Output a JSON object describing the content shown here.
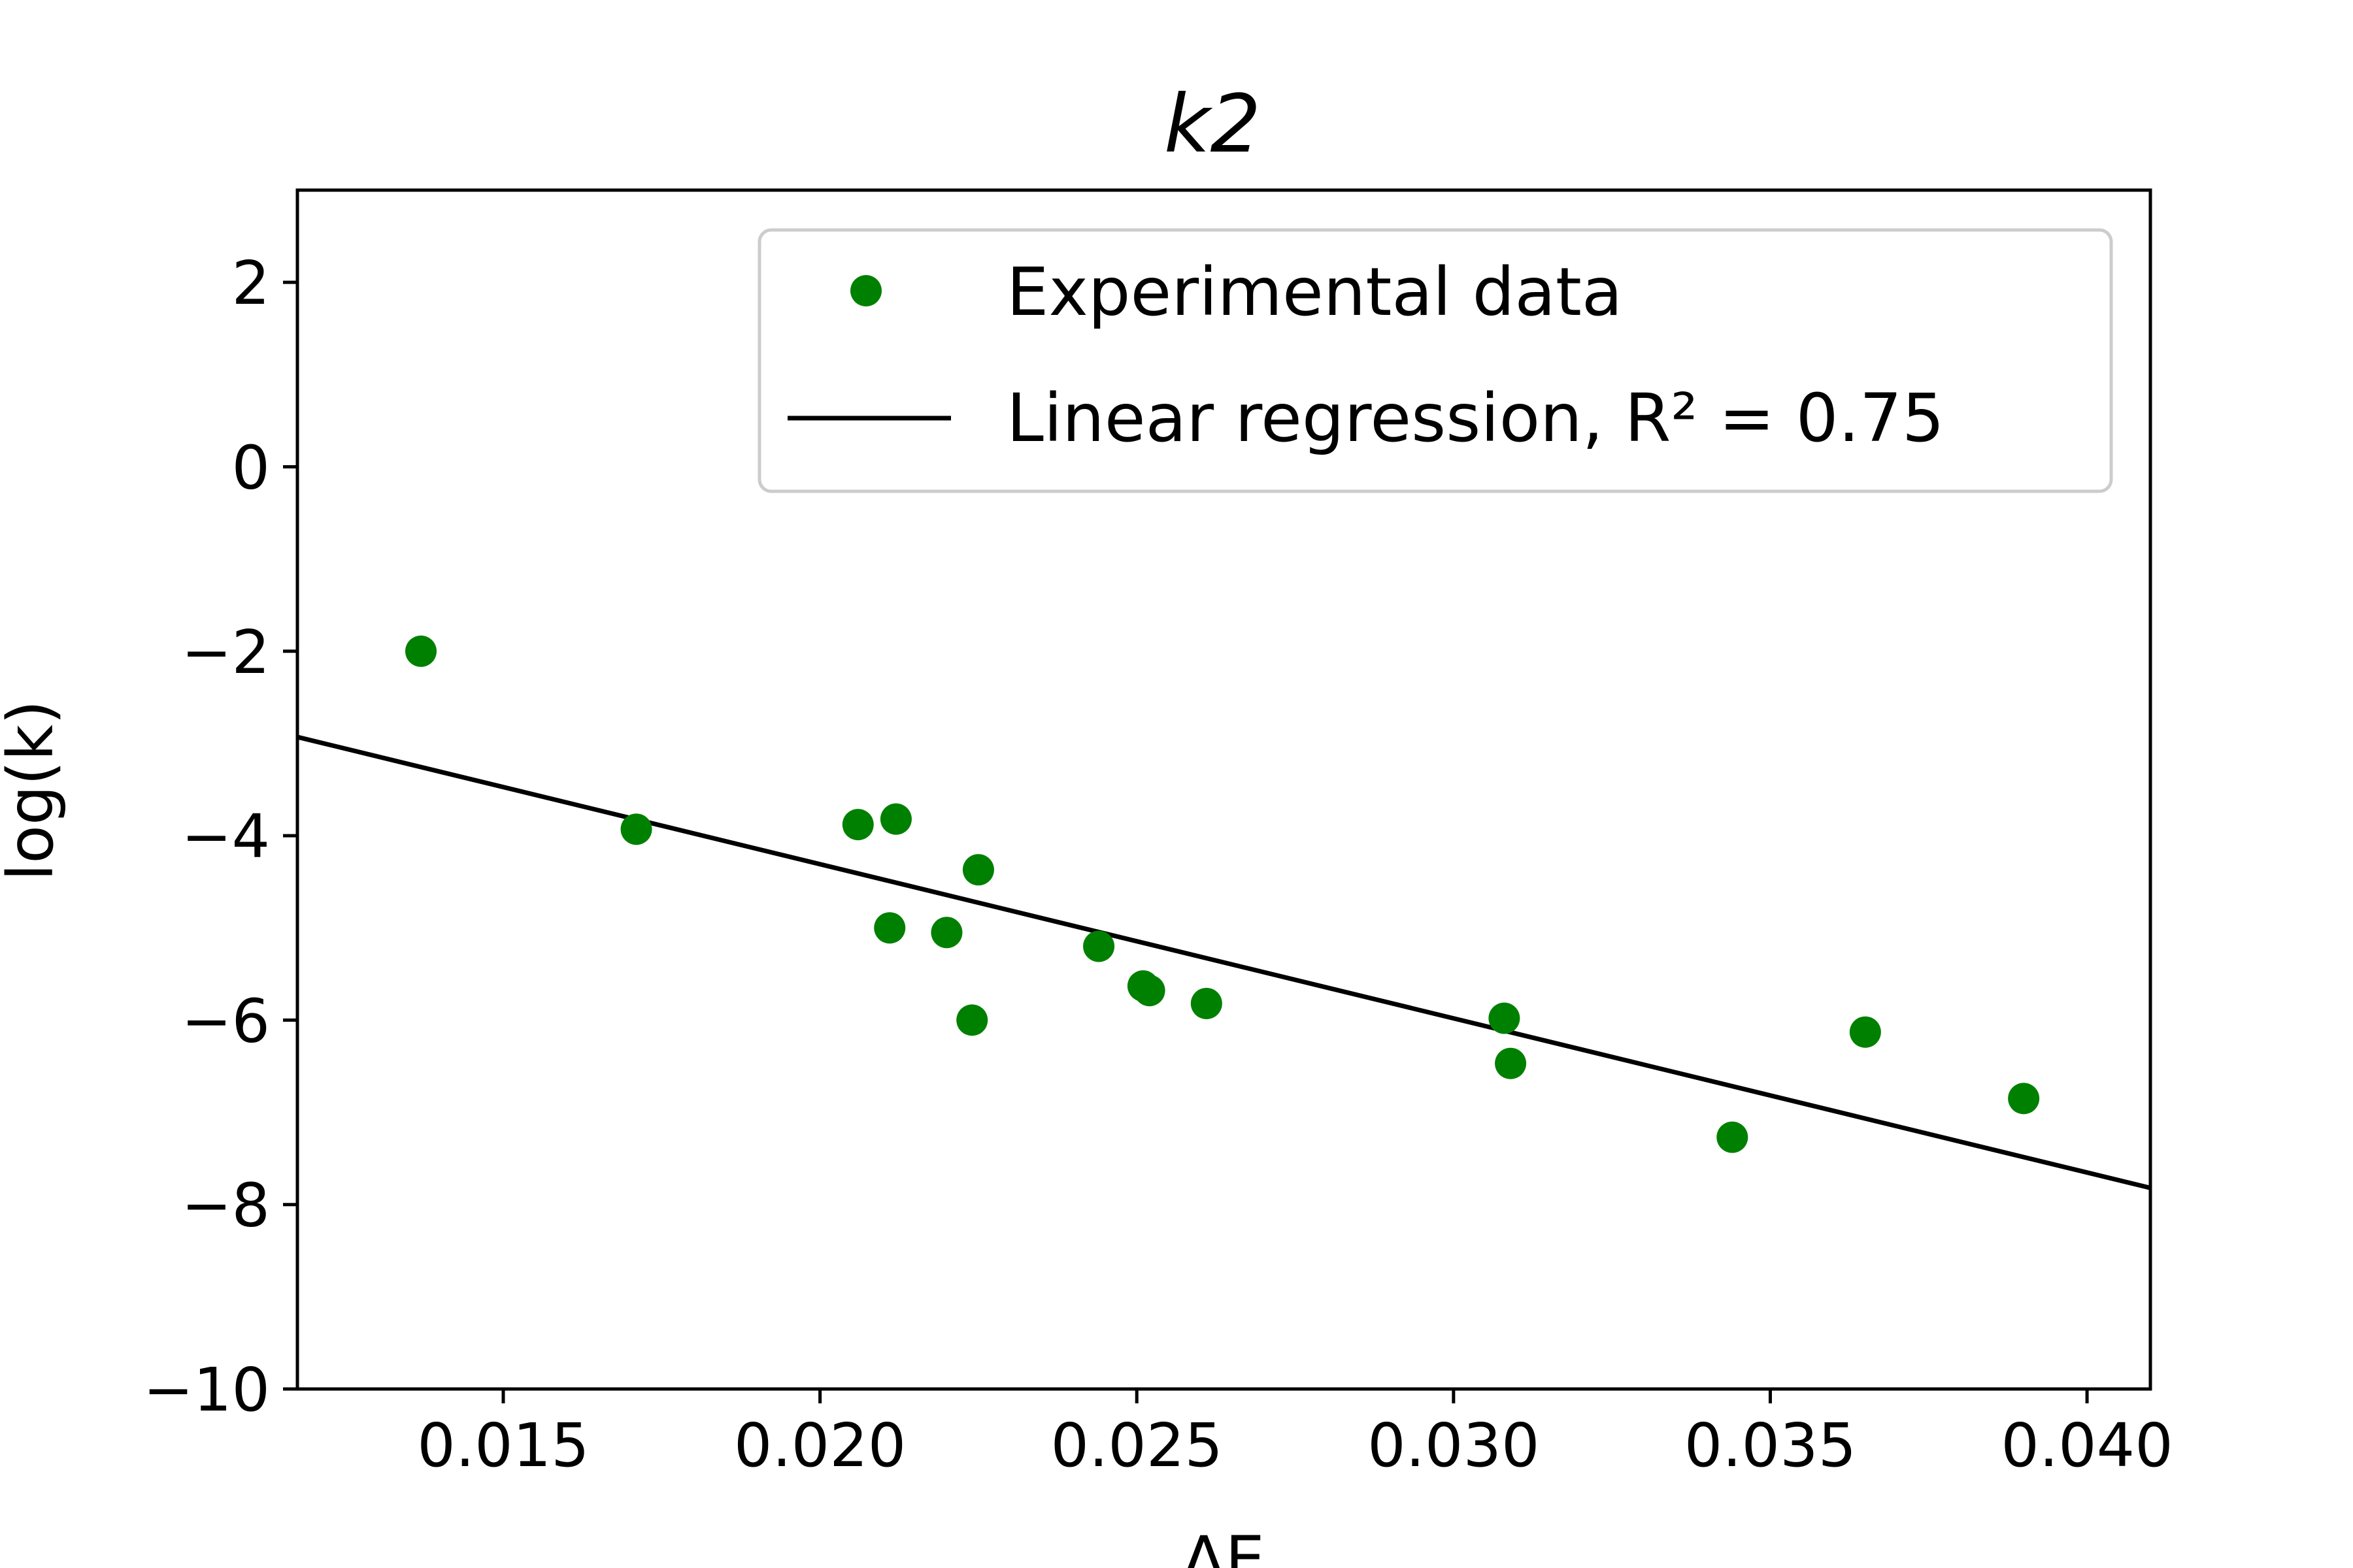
{
  "chart_data": {
    "type": "scatter",
    "title": "k2",
    "xlabel": "ΔE",
    "ylabel": "log(k)",
    "xlim": [
      0.01175,
      0.041
    ],
    "ylim": [
      -10,
      3
    ],
    "xticks": [
      {
        "value": 0.015,
        "label": "0.015"
      },
      {
        "value": 0.02,
        "label": "0.020"
      },
      {
        "value": 0.025,
        "label": "0.025"
      },
      {
        "value": 0.03,
        "label": "0.030"
      },
      {
        "value": 0.035,
        "label": "0.035"
      },
      {
        "value": 0.04,
        "label": "0.040"
      }
    ],
    "yticks": [
      {
        "value": 2,
        "label": "2"
      },
      {
        "value": 0,
        "label": "0"
      },
      {
        "value": -2,
        "label": "−2"
      },
      {
        "value": -4,
        "label": "−4"
      },
      {
        "value": -6,
        "label": "−6"
      },
      {
        "value": -8,
        "label": "−8"
      },
      {
        "value": -10,
        "label": "−10"
      }
    ],
    "grid": false,
    "legend_position": "top-right",
    "series": [
      {
        "name": "Experimental data",
        "kind": "scatter",
        "color": "#008000",
        "x": [
          0.0137,
          0.0171,
          0.0206,
          0.0211,
          0.0212,
          0.022,
          0.0224,
          0.0225,
          0.0244,
          0.0251,
          0.0252,
          0.0261,
          0.0308,
          0.0309,
          0.0344,
          0.0365,
          0.039
        ],
        "y": [
          -2.0,
          -3.93,
          -3.88,
          -5.0,
          -3.82,
          -5.05,
          -6.0,
          -4.37,
          -5.2,
          -5.63,
          -5.68,
          -5.82,
          -5.98,
          -6.47,
          -7.27,
          -6.13,
          -6.85
        ]
      },
      {
        "name": "Linear regression, R² = 0.75",
        "kind": "line",
        "color": "#000000",
        "x": [
          0.01175,
          0.041
        ],
        "y": [
          -2.93,
          -7.82
        ]
      }
    ]
  }
}
